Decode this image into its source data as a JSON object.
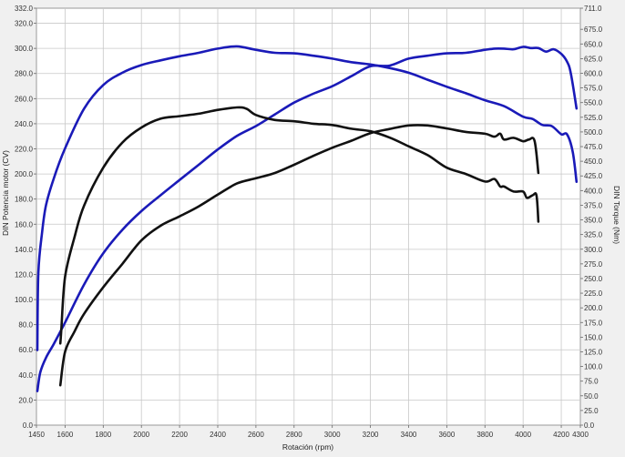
{
  "chart_data": {
    "type": "line",
    "title": "",
    "xlabel": "Rotación (rpm)",
    "ylabel": "DIN Potencia motor (CV)",
    "y2label": "DIN Torque (Nm)",
    "xlim": [
      1450,
      4300
    ],
    "ylim": [
      0,
      332
    ],
    "y2lim": [
      0,
      711
    ],
    "grid": true,
    "legend": "none",
    "x_ticks": [
      "1450",
      "1600",
      "1800",
      "2000",
      "2200",
      "2400",
      "2600",
      "2800",
      "3000",
      "3200",
      "3400",
      "3600",
      "3800",
      "4000",
      "4200",
      "4300"
    ],
    "y_ticks": [
      "0.0",
      "20.0",
      "40.0",
      "60.0",
      "80.0",
      "100.0",
      "120.0",
      "140.0",
      "160.0",
      "180.0",
      "200.0",
      "220.0",
      "240.0",
      "260.0",
      "280.0",
      "300.0",
      "320.0",
      "332.0"
    ],
    "y2_ticks": [
      "0.0",
      "25.0",
      "50.0",
      "75.0",
      "100.0",
      "125.0",
      "150.0",
      "175.0",
      "200.0",
      "225.0",
      "250.0",
      "275.0",
      "300.0",
      "325.0",
      "350.0",
      "375.0",
      "400.0",
      "425.0",
      "450.0",
      "475.0",
      "500.0",
      "525.0",
      "550.0",
      "575.0",
      "600.0",
      "625.0",
      "650.0",
      "675.0",
      "711.0"
    ],
    "series": [
      {
        "axis": "y2",
        "color": "#1a1ab8",
        "x": [
          1455,
          1460,
          1480,
          1500,
          1540,
          1600,
          1700,
          1800,
          1900,
          2000,
          2100,
          2200,
          2300,
          2400,
          2500,
          2600,
          2700,
          2800,
          2900,
          3000,
          3100,
          3200,
          3300,
          3400,
          3500,
          3600,
          3700,
          3800,
          3900,
          4000,
          4050,
          4100,
          4150,
          4200,
          4230,
          4260,
          4280
        ],
        "values": [
          128,
          260,
          330,
          375,
          420,
          472,
          540,
          580,
          601,
          614,
          622,
          629,
          635,
          642,
          646,
          640,
          635,
          634,
          630,
          625,
          619,
          615,
          609,
          601,
          589,
          577,
          566,
          554,
          544,
          526,
          522,
          512,
          510,
          496,
          496,
          466,
          415
        ]
      },
      {
        "axis": "y2",
        "color": "#1a1ab8",
        "x": [
          1455,
          1470,
          1500,
          1540,
          1600,
          1700,
          1800,
          1900,
          2000,
          2100,
          2200,
          2300,
          2400,
          2500,
          2600,
          2700,
          2800,
          2900,
          3000,
          3100,
          3200,
          3300,
          3400,
          3500,
          3600,
          3700,
          3800,
          3850,
          3900,
          3950,
          4000,
          4040,
          4080,
          4120,
          4160,
          4200,
          4230,
          4250,
          4280
        ],
        "values": [
          58,
          90,
          115,
          138,
          175,
          240,
          293,
          333,
          365,
          392,
          418,
          444,
          470,
          493,
          510,
          530,
          550,
          565,
          578,
          595,
          612,
          613,
          625,
          630,
          634,
          635,
          640,
          642,
          642,
          641,
          645,
          643,
          643,
          637,
          641,
          633,
          620,
          600,
          540
        ]
      },
      {
        "axis": "y1",
        "color": "#111111",
        "x": [
          1575,
          1580,
          1600,
          1650,
          1700,
          1800,
          1900,
          2000,
          2100,
          2200,
          2300,
          2400,
          2500,
          2550,
          2600,
          2700,
          2800,
          2900,
          3000,
          3100,
          3200,
          3300,
          3400,
          3500,
          3600,
          3700,
          3800,
          3850,
          3880,
          3900,
          3950,
          4000,
          4020,
          4050,
          4070,
          4080
        ],
        "values": [
          65,
          75,
          118,
          150,
          175,
          205,
          225,
          237,
          244,
          246,
          248,
          251,
          253,
          252,
          247,
          243,
          242,
          240,
          239,
          236,
          234,
          229,
          222,
          215,
          205,
          200,
          194,
          196,
          190,
          190,
          186,
          186,
          181,
          183,
          183,
          162
        ]
      },
      {
        "axis": "y2",
        "color": "#111111",
        "x": [
          1575,
          1600,
          1650,
          1700,
          1800,
          1900,
          2000,
          2100,
          2200,
          2300,
          2400,
          2500,
          2600,
          2700,
          2800,
          2900,
          3000,
          3100,
          3200,
          3300,
          3400,
          3500,
          3600,
          3700,
          3800,
          3850,
          3880,
          3900,
          3950,
          4000,
          4030,
          4060,
          4080
        ],
        "values": [
          68,
          125,
          160,
          190,
          235,
          275,
          315,
          340,
          356,
          373,
          393,
          412,
          421,
          430,
          444,
          459,
          473,
          485,
          498,
          505,
          511,
          511,
          506,
          500,
          497,
          492,
          497,
          487,
          490,
          484,
          487,
          485,
          430
        ]
      }
    ]
  }
}
